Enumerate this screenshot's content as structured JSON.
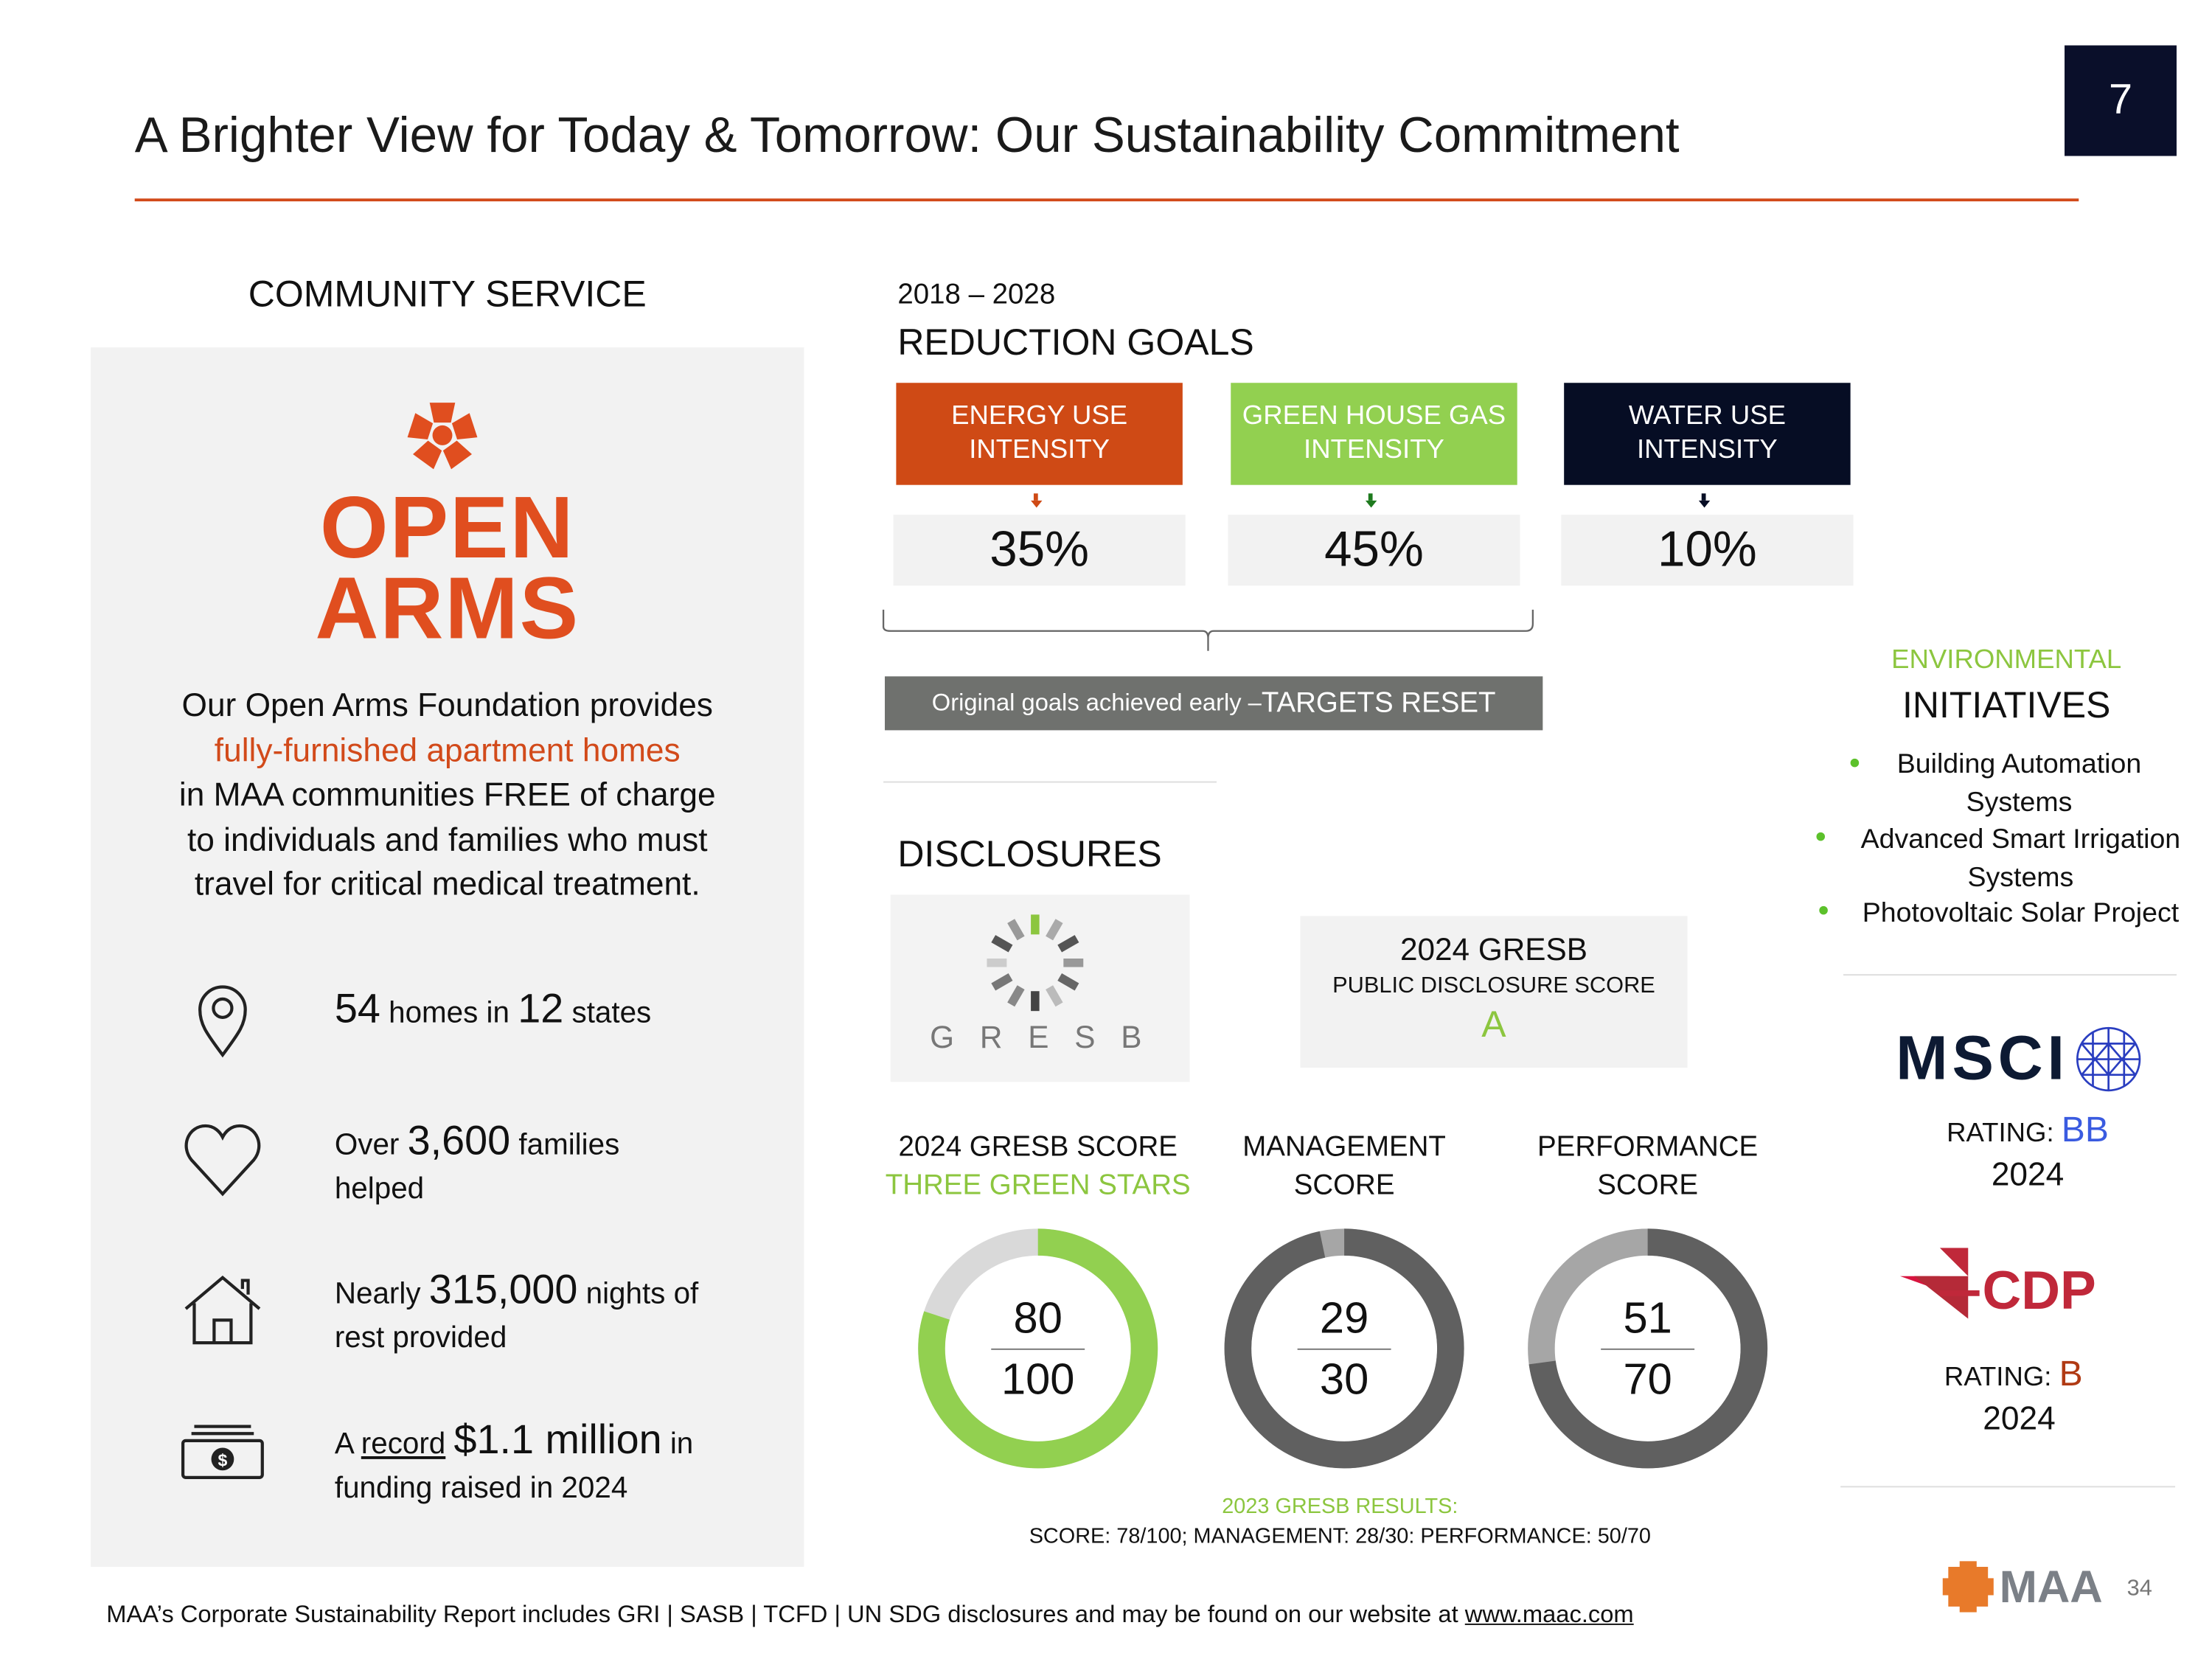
{
  "header": {
    "title": "A Brighter View for Today & Tomorrow: Our Sustainability Commitment",
    "page_badge": "7"
  },
  "community": {
    "heading": "COMMUNITY SERVICE",
    "logo": {
      "line1": "OPEN",
      "line2": "ARMS"
    },
    "paragraph": {
      "line1": "Our Open Arms Foundation provides",
      "highlight": "fully-furnished apartment homes",
      "line3": "in MAA communities FREE of charge",
      "line4": "to individuals and families who must",
      "line5": "travel for critical medical treatment."
    },
    "stats": [
      {
        "icon": "map-pin-icon",
        "n1": "54",
        "t1": " homes in ",
        "n2": "12",
        "t2": " states"
      },
      {
        "icon": "heart-icon",
        "t0": "Over ",
        "n1": "3,600",
        "t1": " families",
        "line2": "helped"
      },
      {
        "icon": "house-icon",
        "t0": "Nearly ",
        "n1": "315,000",
        "t1": " nights of",
        "line2": "rest provided"
      },
      {
        "icon": "money-icon",
        "t0": "A ",
        "u": "record",
        "n1": "$1.1 million",
        "t1": " in",
        "line2": "funding raised in 2024"
      }
    ]
  },
  "reduction": {
    "years": "2018 – 2028",
    "heading": "REDUCTION GOALS",
    "goals": [
      {
        "label1": "ENERGY USE",
        "label2": "INTENSITY",
        "value": "35%",
        "color": "#cf4a15",
        "arrow": "#cf4a15"
      },
      {
        "label1": "GREEN HOUSE GAS",
        "label2": "INTENSITY",
        "value": "45%",
        "color": "#92d050",
        "arrow": "#1e7a1e"
      },
      {
        "label1": "WATER USE",
        "label2": "INTENSITY",
        "value": "10%",
        "color": "#060d24",
        "arrow": "#060d24"
      }
    ],
    "note": "Original goals achieved early – ",
    "note_emph": "TARGETS RESET"
  },
  "disclosures": {
    "heading": "DISCLOSURES",
    "gresb_logo": "G R E S B",
    "public": {
      "title": "2024 GRESB",
      "subtitle": "PUBLIC DISCLOSURE SCORE",
      "grade": "A"
    },
    "scores": [
      {
        "label1": "2024 GRESB SCORE",
        "label2": "THREE GREEN STARS",
        "value": 80,
        "max": 100,
        "value_text": "80",
        "max_text": "100",
        "fill": "#92d050",
        "rest": "#d9d9d9"
      },
      {
        "label1": "MANAGEMENT",
        "label2": "SCORE",
        "value": 29,
        "max": 30,
        "value_text": "29",
        "max_text": "30",
        "fill": "#606060",
        "rest": "#a6a6a6"
      },
      {
        "label1": "PERFORMANCE",
        "label2": "SCORE",
        "value": 51,
        "max": 70,
        "value_text": "51",
        "max_text": "70",
        "fill": "#606060",
        "rest": "#a6a6a6"
      }
    ],
    "prior_title": "2023 GRESB RESULTS:",
    "prior_text": "SCORE: 78/100; MANAGEMENT: 28/30: PERFORMANCE: 50/70"
  },
  "environmental": {
    "kicker": "ENVIRONMENTAL",
    "heading": "INITIATIVES",
    "items": [
      {
        "l1": "Building Automation",
        "l2": "Systems"
      },
      {
        "l1": "Advanced Smart Irrigation",
        "l2": "Systems"
      },
      {
        "l1": "Photovoltaic Solar Project",
        "l2": ""
      }
    ]
  },
  "ratings": {
    "msci": {
      "logo": "MSCI",
      "label": "RATING: ",
      "grade": "BB",
      "year": "2024"
    },
    "cdp": {
      "logo": "CDP",
      "label": "RATING: ",
      "grade": "B",
      "year": "2024"
    }
  },
  "footer": {
    "text": "MAA’s Corporate Sustainability Report includes GRI | SASB | TCFD | UN SDG disclosures and may be found on our website at ",
    "link": "www.maac.com",
    "brand": "MAA",
    "page_number": "34"
  }
}
